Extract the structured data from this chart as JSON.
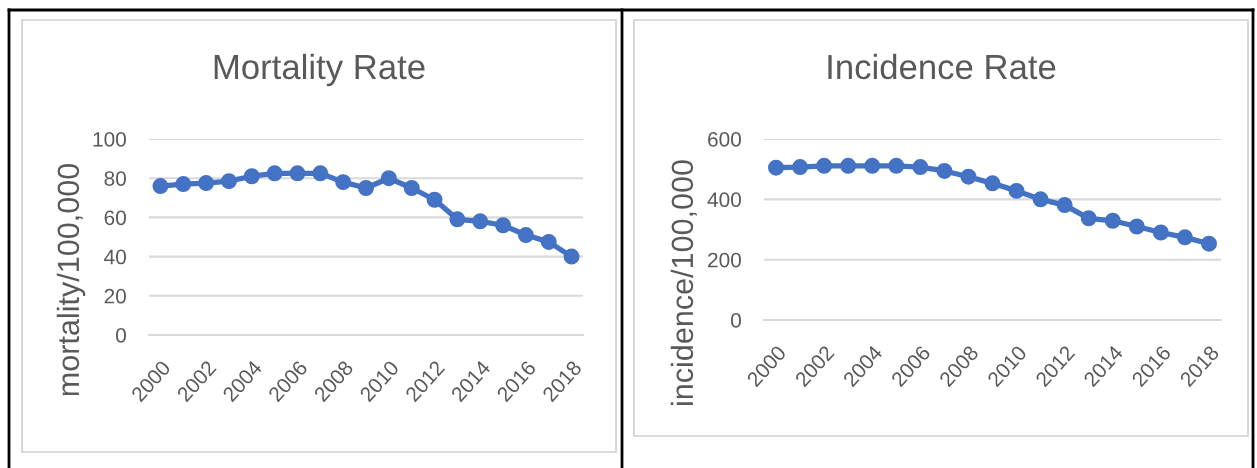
{
  "chart_data": [
    {
      "type": "line",
      "title": "Mortality Rate",
      "ylabel": "mortality/100,000",
      "x": [
        2000,
        2001,
        2002,
        2003,
        2004,
        2005,
        2006,
        2007,
        2008,
        2009,
        2010,
        2011,
        2012,
        2013,
        2014,
        2015,
        2016,
        2017,
        2018
      ],
      "series": [
        {
          "color": "#4472c4",
          "values": [
            76,
            77,
            77.5,
            78.5,
            81,
            82.5,
            82.5,
            82.5,
            78,
            75,
            80,
            75,
            69,
            59,
            58,
            56,
            51,
            47.5,
            40
          ]
        }
      ],
      "xlim": [
        1999.5,
        2018.5
      ],
      "xticks": [
        2000,
        2002,
        2004,
        2006,
        2008,
        2010,
        2012,
        2014,
        2016,
        2018
      ],
      "ylim": [
        0,
        100
      ],
      "yticks": [
        0,
        20,
        40,
        60,
        80,
        100
      ],
      "grid": "y",
      "marker": "circle",
      "line_style": "solid"
    },
    {
      "type": "line",
      "title": "Incidence Rate",
      "ylabel": "incidence/100,000",
      "x": [
        2000,
        2001,
        2002,
        2003,
        2004,
        2005,
        2006,
        2007,
        2008,
        2009,
        2010,
        2011,
        2012,
        2013,
        2014,
        2015,
        2016,
        2017,
        2018
      ],
      "series": [
        {
          "color": "#4472c4",
          "values": [
            505,
            507,
            511,
            511,
            511,
            511,
            507,
            494,
            475,
            453,
            428,
            400,
            381,
            337,
            329,
            310,
            290,
            274,
            253
          ]
        }
      ],
      "xlim": [
        1999.5,
        2018.5
      ],
      "xticks": [
        2000,
        2002,
        2004,
        2006,
        2008,
        2010,
        2012,
        2014,
        2016,
        2018
      ],
      "ylim": [
        0,
        600
      ],
      "yticks": [
        0,
        200,
        400,
        600
      ],
      "grid": "y",
      "marker": "circle",
      "line_style": "solid"
    }
  ]
}
